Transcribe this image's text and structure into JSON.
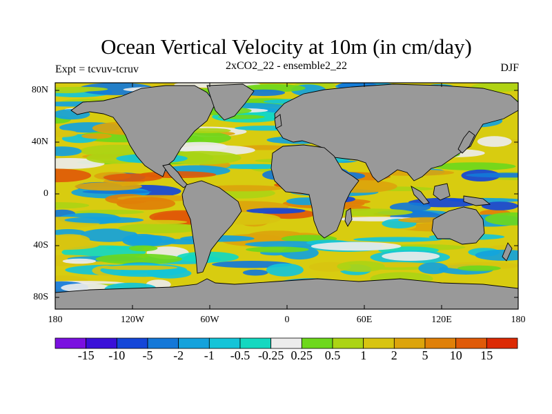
{
  "title": "Ocean Vertical Velocity at 10m (in cm/day)",
  "subtitle_left": "Expt = tcvuv-tcruv",
  "subtitle_center": "2xCO2_22 - ensemble2_22",
  "subtitle_right": "DJF",
  "lat_labels": [
    "80N",
    "40N",
    "0",
    "40S",
    "80S"
  ],
  "lon_labels": [
    "180",
    "120W",
    "60W",
    "0",
    "60E",
    "120E",
    "180"
  ],
  "colorbar": {
    "labels": [
      "-15",
      "-10",
      "-5",
      "-2",
      "-1",
      "-0.5",
      "-0.25",
      "0.25",
      "0.5",
      "1",
      "2",
      "5",
      "10",
      "15"
    ],
    "colors": [
      "#7a10e0",
      "#3a10d8",
      "#1446d8",
      "#1478d8",
      "#14a2dc",
      "#14c4d8",
      "#14d8c0",
      "#ececec",
      "#6ed81c",
      "#acd414",
      "#d8c410",
      "#dca40c",
      "#e08008",
      "#e05a08",
      "#dc2a04"
    ]
  },
  "colors": {
    "land": "#999999",
    "ocean_base": "#d8cc10",
    "coast": "#000000"
  }
}
